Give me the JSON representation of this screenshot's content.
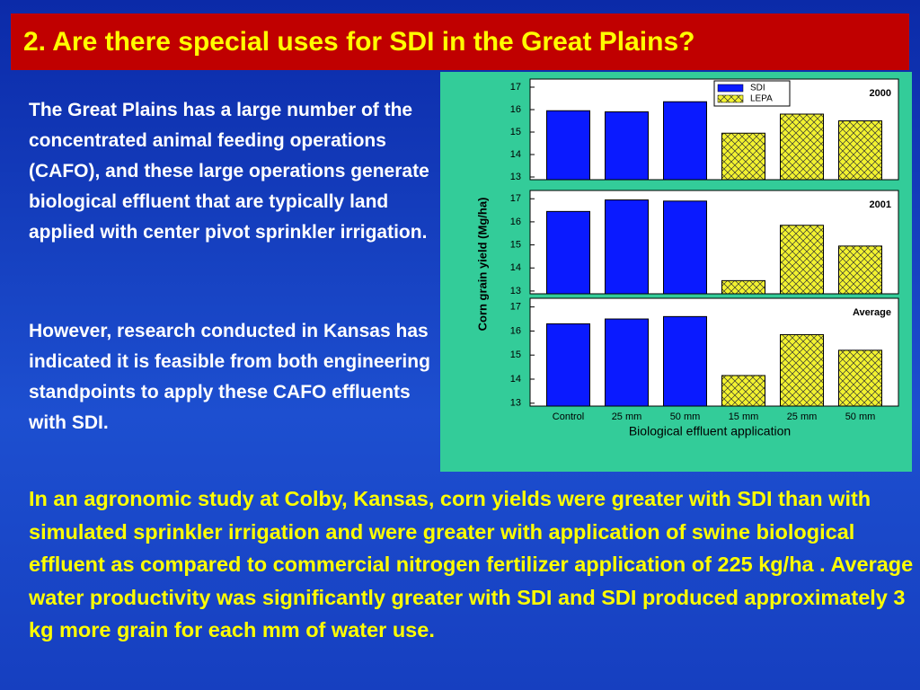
{
  "title": "2. Are there special uses for SDI in the Great Plains?",
  "paragraphs": [
    "The Great Plains has a large number of the concentrated animal feeding operations (CAFO), and these large operations generate biological effluent that are typically land applied with center pivot sprinkler irrigation.",
    "However, research conducted in Kansas has indicated it is feasible from both engineering standpoints to apply these CAFO effluents with SDI."
  ],
  "conclusion": "In an agronomic study at Colby, Kansas, corn yields were greater with SDI than with simulated sprinkler irrigation and were greater with application of swine biological effluent as compared to commercial nitrogen fertilizer application of 225 kg/ha .  Average water productivity was significantly greater with SDI and SDI produced approximately 3 kg more grain for each mm of water use.",
  "chart_data": [
    {
      "type": "bar",
      "annotation": "2000",
      "ylim": [
        12.88,
        17.36
      ],
      "yticks": [
        13,
        14,
        15,
        16,
        17
      ],
      "series": [
        {
          "name": "SDI",
          "color": "#0a1aff",
          "values": [
            15.95,
            15.9,
            16.35,
            null,
            null,
            null
          ]
        },
        {
          "name": "LEPA",
          "color": "#f2f230",
          "hatch": true,
          "values": [
            null,
            null,
            null,
            14.95,
            15.8,
            15.5
          ]
        }
      ]
    },
    {
      "type": "bar",
      "annotation": "2001",
      "ylabel": "Corn grain yield (Mg/ha)",
      "ylim": [
        12.88,
        17.36
      ],
      "yticks": [
        13,
        14,
        15,
        16,
        17
      ],
      "series": [
        {
          "color": "#0a1aff",
          "values": [
            16.45,
            16.95,
            16.9,
            null,
            null,
            null
          ]
        },
        {
          "color": "#f2f230",
          "hatch": true,
          "values": [
            null,
            null,
            null,
            13.45,
            15.85,
            14.95
          ]
        }
      ]
    },
    {
      "type": "bar",
      "annotation": "Average",
      "ylim": [
        12.88,
        17.36
      ],
      "yticks": [
        13,
        14,
        15,
        16,
        17
      ],
      "categories": [
        "Control",
        "25 mm",
        "50 mm",
        "15 mm",
        "25 mm",
        "50 mm"
      ],
      "xlabel": "Biological effluent application",
      "series": [
        {
          "color": "#0a1aff",
          "values": [
            16.3,
            16.5,
            16.6,
            null,
            null,
            null
          ]
        },
        {
          "color": "#f2f230",
          "hatch": true,
          "values": [
            null,
            null,
            null,
            14.15,
            15.85,
            15.2
          ]
        }
      ]
    }
  ]
}
